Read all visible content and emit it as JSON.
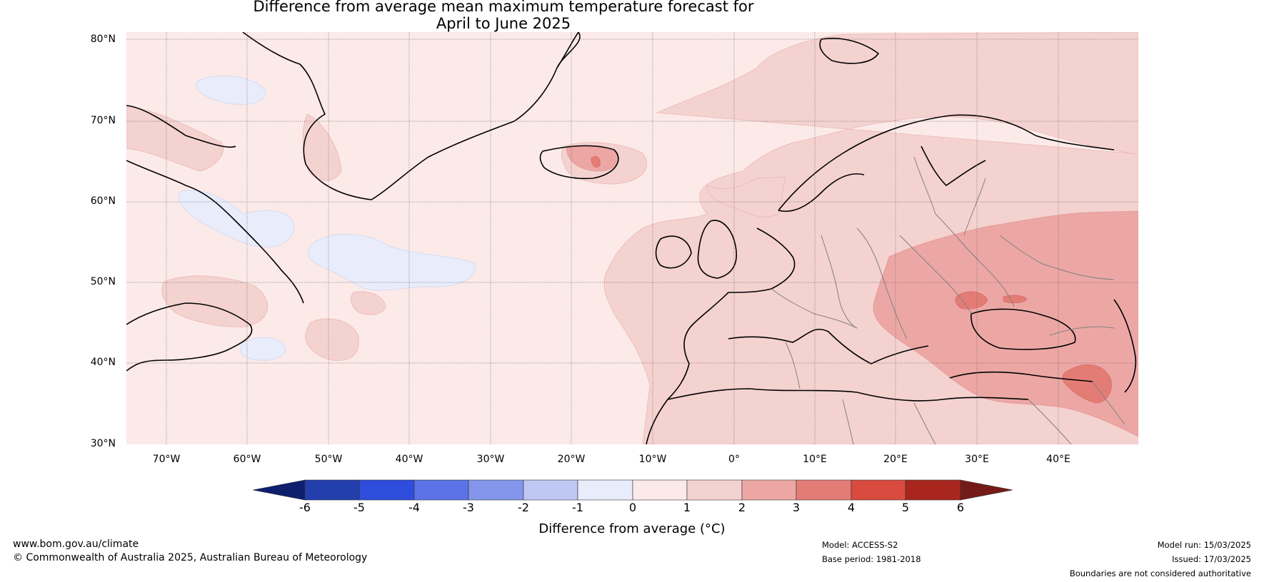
{
  "title_line1": "Difference from average mean maximum temperature forecast for",
  "title_line2": "April to June 2025",
  "lat_labels": [
    "80°N",
    "70°N",
    "60°N",
    "50°N",
    "40°N",
    "30°N"
  ],
  "lon_labels": [
    "70°W",
    "60°W",
    "50°W",
    "40°W",
    "30°W",
    "20°W",
    "10°W",
    "0°",
    "10°E",
    "20°E",
    "30°E",
    "40°E"
  ],
  "colorbar": {
    "label": "Difference from average (°C)",
    "ticks": [
      "-6",
      "-5",
      "-4",
      "-3",
      "-2",
      "-1",
      "0",
      "1",
      "2",
      "3",
      "4",
      "5",
      "6"
    ],
    "colors": [
      "#0f1f6e",
      "#233fae",
      "#2f4ddc",
      "#5b73e6",
      "#8496ec",
      "#bfc8f3",
      "#e9ecfb",
      "#fbeae8",
      "#f4d2d0",
      "#eca7a5",
      "#e47c76",
      "#d94b3f",
      "#a9261f",
      "#751b17"
    ]
  },
  "footer": {
    "website": "www.bom.gov.au/climate",
    "copyright": "© Commonwealth of Australia 2025, Australian Bureau of Meteorology",
    "model": "Model: ACCESS-S2",
    "base_period": "Base period: 1981-2018",
    "model_run": "Model run: 15/03/2025",
    "issued": "Issued: 17/03/2025",
    "boundaries": "Boundaries are not considered authoritative"
  },
  "anomaly_colors": {
    "cool": "#e9ecfb",
    "slight_warm": "#fbeae8",
    "warm": "#f4d2d0",
    "warmer": "#eca7a5",
    "hot": "#e47c76"
  }
}
